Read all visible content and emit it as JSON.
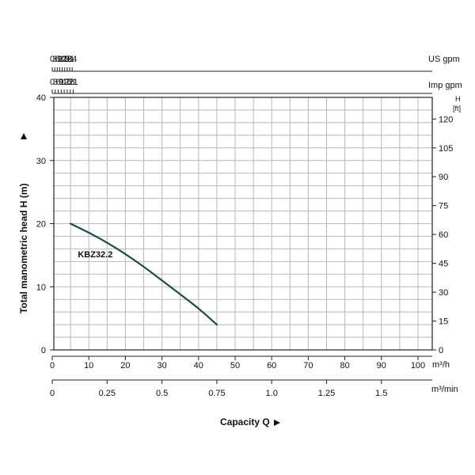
{
  "chart_data": {
    "type": "line",
    "xlabel": "Capacity Q",
    "ylabel": "Total manometric head H (m)",
    "xlim": [
      0,
      105
    ],
    "ylim": [
      0,
      40
    ],
    "grid": true,
    "axes": {
      "us_gpm": {
        "unit": "US gpm",
        "ticks": [
          0,
          3,
          6,
          9,
          12,
          15,
          18,
          21,
          24
        ]
      },
      "imp_gpm": {
        "unit": "Imp gpm",
        "ticks": [
          0,
          3,
          6,
          9,
          12,
          15,
          18,
          21
        ]
      },
      "m3h": {
        "unit": "m³/h",
        "ticks": [
          0,
          10,
          20,
          30,
          40,
          50,
          60,
          70,
          80,
          90,
          100
        ]
      },
      "m3min": {
        "unit": "m³/min",
        "ticks": [
          0,
          0.25,
          0.5,
          0.75,
          1.0,
          1.25,
          1.5
        ],
        "tick_labels": [
          "0",
          "0.25",
          "0.5",
          "0.75",
          "1.0",
          "1.25",
          "1.5"
        ]
      },
      "head_m": {
        "ticks": [
          0,
          10,
          20,
          30,
          40
        ]
      },
      "head_ft": {
        "unit_top": "H",
        "unit_bottom": "[ft]",
        "ticks": [
          0,
          15,
          30,
          45,
          60,
          75,
          90,
          105,
          120
        ]
      }
    },
    "series": [
      {
        "name": "KBZ32.2",
        "x": [
          5,
          10,
          15,
          20,
          25,
          30,
          35,
          40,
          45
        ],
        "y": [
          20,
          18.6,
          17.0,
          15.2,
          13.2,
          11.0,
          8.8,
          6.6,
          4.0
        ]
      }
    ]
  },
  "colors": {
    "curve": "#1f4a48",
    "grid": "#b8b8b8",
    "axis": "#222222"
  }
}
